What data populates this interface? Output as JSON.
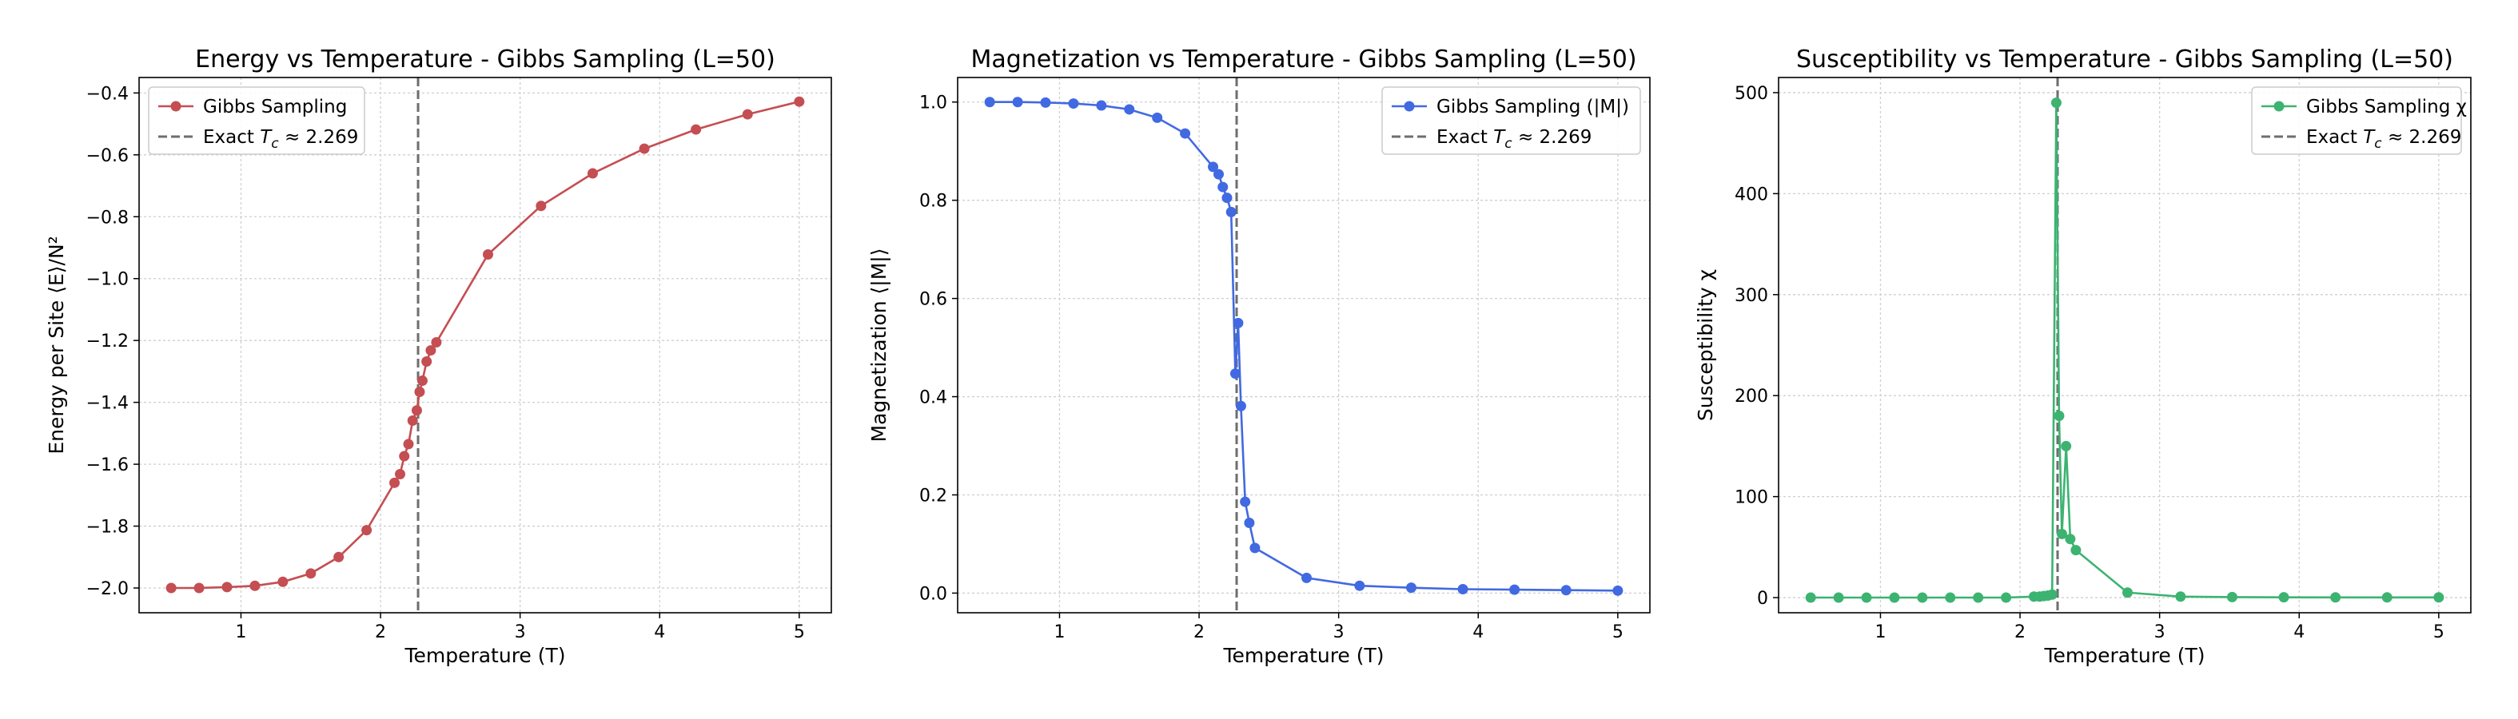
{
  "chart_data": [
    {
      "type": "line",
      "title": "Energy vs Temperature - Gibbs Sampling (L=50)",
      "xlabel": "Temperature (T)",
      "ylabel": "Energy per Site ⟨E⟩/N²",
      "xlim": [
        0.27,
        5.23
      ],
      "ylim": [
        -2.08,
        -0.35
      ],
      "xticks": [
        "1",
        "2",
        "3",
        "4",
        "5"
      ],
      "yticks": [
        "−2.0",
        "−1.8",
        "−1.6",
        "−1.4",
        "−1.2",
        "−1.0",
        "−0.8",
        "−0.6",
        "−0.4"
      ],
      "grid": true,
      "legend_position": "top-left",
      "color": "#c44e52",
      "series": [
        {
          "name": "Gibbs Sampling",
          "x": [
            0.5,
            0.7,
            0.9,
            1.1,
            1.3,
            1.5,
            1.7,
            1.9,
            2.1,
            2.14,
            2.17,
            2.2,
            2.23,
            2.26,
            2.28,
            2.3,
            2.33,
            2.36,
            2.4,
            2.77,
            3.15,
            3.52,
            3.89,
            4.26,
            4.63,
            5.0
          ],
          "y": [
            -2.0,
            -2.0,
            -1.997,
            -1.993,
            -1.98,
            -1.953,
            -1.9,
            -1.813,
            -1.66,
            -1.632,
            -1.574,
            -1.535,
            -1.459,
            -1.426,
            -1.366,
            -1.33,
            -1.268,
            -1.232,
            -1.206,
            -0.922,
            -0.765,
            -0.66,
            -0.58,
            -0.518,
            -0.469,
            -0.428
          ]
        }
      ],
      "reference_line": {
        "label": "Exact Tc ≈ 2.269",
        "x": 2.269
      }
    },
    {
      "type": "line",
      "title": "Magnetization vs Temperature - Gibbs Sampling (L=50)",
      "xlabel": "Temperature (T)",
      "ylabel": "Magnetization ⟨|M|⟩",
      "xlim": [
        0.27,
        5.23
      ],
      "ylim": [
        -0.04,
        1.05
      ],
      "xticks": [
        "1",
        "2",
        "3",
        "4",
        "5"
      ],
      "yticks": [
        "0.0",
        "0.2",
        "0.4",
        "0.6",
        "0.8",
        "1.0"
      ],
      "grid": true,
      "legend_position": "top-right",
      "color": "#4169e1",
      "series": [
        {
          "name": "Gibbs Sampling (|M|)",
          "x": [
            0.5,
            0.7,
            0.9,
            1.1,
            1.3,
            1.5,
            1.7,
            1.9,
            2.1,
            2.14,
            2.17,
            2.2,
            2.23,
            2.26,
            2.28,
            2.3,
            2.33,
            2.36,
            2.4,
            2.77,
            3.15,
            3.52,
            3.89,
            4.26,
            4.63,
            5.0
          ],
          "y": [
            1.0,
            1.0,
            0.999,
            0.997,
            0.993,
            0.985,
            0.968,
            0.936,
            0.868,
            0.853,
            0.827,
            0.805,
            0.776,
            0.447,
            0.55,
            0.381,
            0.186,
            0.143,
            0.092,
            0.031,
            0.015,
            0.011,
            0.008,
            0.007,
            0.006,
            0.005
          ]
        }
      ],
      "reference_line": {
        "label": "Exact Tc ≈ 2.269",
        "x": 2.269
      }
    },
    {
      "type": "line",
      "title": "Susceptibility vs Temperature - Gibbs Sampling (L=50)",
      "xlabel": "Temperature (T)",
      "ylabel": "Susceptibility χ",
      "xlim": [
        0.27,
        5.23
      ],
      "ylim": [
        -15,
        515
      ],
      "xticks": [
        "1",
        "2",
        "3",
        "4",
        "5"
      ],
      "yticks": [
        "0",
        "100",
        "200",
        "300",
        "400",
        "500"
      ],
      "grid": true,
      "legend_position": "top-right",
      "color": "#3cb371",
      "series": [
        {
          "name": "Gibbs Sampling χ",
          "x": [
            0.5,
            0.7,
            0.9,
            1.1,
            1.3,
            1.5,
            1.7,
            1.9,
            2.1,
            2.14,
            2.17,
            2.2,
            2.23,
            2.26,
            2.28,
            2.3,
            2.33,
            2.36,
            2.4,
            2.77,
            3.15,
            3.52,
            3.89,
            4.26,
            4.63,
            5.0
          ],
          "y": [
            0,
            0,
            0,
            0,
            0,
            0,
            0,
            0,
            1,
            1,
            1.5,
            2,
            3,
            490,
            180,
            63,
            150,
            58,
            47,
            5,
            1,
            0.5,
            0.3,
            0.2,
            0.2,
            0.2
          ]
        }
      ],
      "reference_line": {
        "label": "Exact Tc ≈ 2.269",
        "x": 2.269
      }
    }
  ]
}
